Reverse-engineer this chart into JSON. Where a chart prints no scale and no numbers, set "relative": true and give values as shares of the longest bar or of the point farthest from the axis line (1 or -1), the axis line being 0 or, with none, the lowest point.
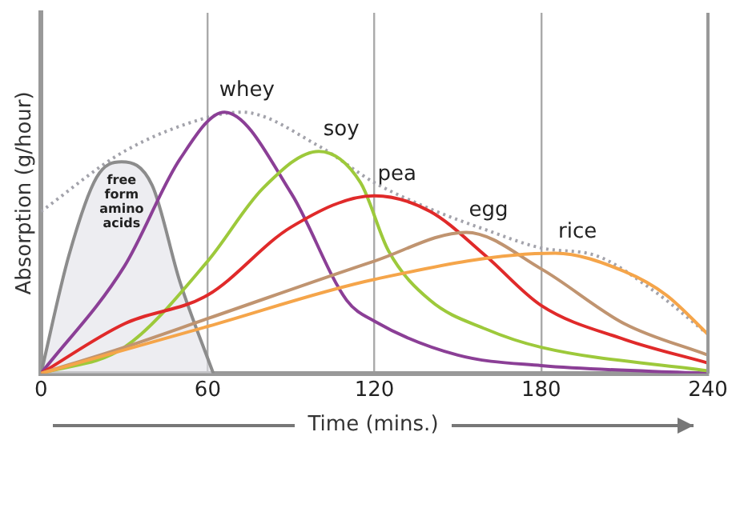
{
  "chart_data": {
    "type": "line",
    "relative": true,
    "xlabel": "Time (mins.)",
    "ylabel": "Absorption (g/hour)",
    "xlim": [
      0,
      240
    ],
    "xticks": [
      0,
      60,
      120,
      180,
      240
    ],
    "grid": "x",
    "legend": false,
    "marker": "none",
    "series": [
      {
        "color": "#a3a3ab",
        "line_style": "dotted",
        "x": [
          0,
          30,
          60,
          72,
          100,
          120,
          140,
          160,
          180,
          200,
          220,
          240
        ],
        "values": [
          0.62,
          0.85,
          0.98,
          1.0,
          0.87,
          0.73,
          0.63,
          0.55,
          0.48,
          0.45,
          0.32,
          0.15
        ]
      },
      {
        "name": "free form amino acids",
        "type": "area",
        "color": "#8c8c8c",
        "x": [
          0,
          10,
          20,
          29,
          40,
          50,
          62
        ],
        "values": [
          0,
          0.45,
          0.75,
          0.81,
          0.72,
          0.35,
          0
        ]
      },
      {
        "name": "whey",
        "color": "#8b3f96",
        "x": [
          0,
          30,
          50,
          66,
          90,
          110,
          120,
          150,
          180,
          240
        ],
        "values": [
          0,
          0.41,
          0.82,
          1.0,
          0.69,
          0.28,
          0.2,
          0.07,
          0.03,
          0
        ]
      },
      {
        "name": "soy",
        "color": "#9dc93b",
        "x": [
          0,
          30,
          60,
          80,
          100,
          115,
          125,
          140,
          160,
          180,
          240
        ],
        "values": [
          0,
          0.1,
          0.43,
          0.71,
          0.85,
          0.73,
          0.47,
          0.28,
          0.17,
          0.1,
          0.01
        ]
      },
      {
        "name": "pea",
        "color": "#e02a2a",
        "x": [
          0,
          30,
          60,
          90,
          120,
          140,
          160,
          180,
          210,
          240
        ],
        "values": [
          0,
          0.19,
          0.3,
          0.56,
          0.68,
          0.62,
          0.45,
          0.26,
          0.13,
          0.04
        ]
      },
      {
        "name": "egg",
        "color": "#c09470",
        "x": [
          0,
          30,
          60,
          120,
          153,
          180,
          210,
          240
        ],
        "values": [
          0,
          0.1,
          0.21,
          0.43,
          0.54,
          0.4,
          0.19,
          0.07
        ]
      },
      {
        "name": "rice",
        "color": "#f5a54a",
        "x": [
          0,
          60,
          120,
          185,
          210,
          225,
          240
        ],
        "values": [
          0,
          0.18,
          0.36,
          0.46,
          0.39,
          0.3,
          0.15
        ]
      }
    ]
  }
}
